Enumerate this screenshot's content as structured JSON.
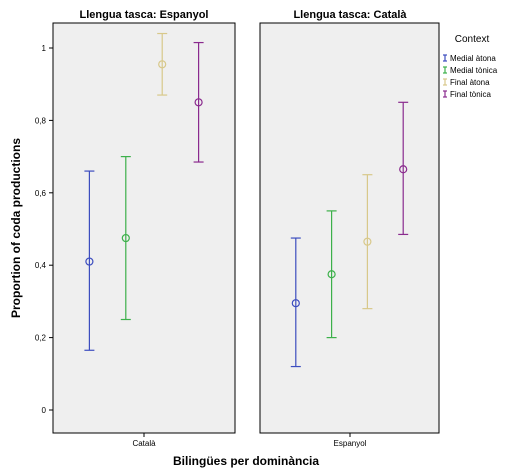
{
  "chart_data": {
    "type": "errorbar",
    "xlabel": "Bilingües per dominància",
    "ylabel": "Proportion of coda productions",
    "ylim": [
      0,
      1.05
    ],
    "y_ticks": [
      0,
      0.2,
      0.4,
      0.6,
      0.8,
      1
    ],
    "y_tick_labels": [
      "0",
      "0,2",
      "0,4",
      "0,6",
      "0,8",
      "1"
    ],
    "grid": false,
    "legend": {
      "title": "Context",
      "placement": "right",
      "entries": [
        {
          "name": "Medial àtona",
          "color": "#3c4dbf"
        },
        {
          "name": "Medial tònica",
          "color": "#3cb04a"
        },
        {
          "name": "Final àtona",
          "color": "#d8c88a"
        },
        {
          "name": "Final tònica",
          "color": "#8a2a8e"
        }
      ]
    },
    "panels": [
      {
        "title": "Llengua tasca: Espanyol",
        "category": "Català",
        "series": [
          {
            "name": "Medial àtona",
            "mean": 0.41,
            "low": 0.165,
            "high": 0.66
          },
          {
            "name": "Medial tònica",
            "mean": 0.475,
            "low": 0.25,
            "high": 0.7
          },
          {
            "name": "Final àtona",
            "mean": 0.955,
            "low": 0.87,
            "high": 1.04
          },
          {
            "name": "Final tònica",
            "mean": 0.85,
            "low": 0.685,
            "high": 1.015
          }
        ]
      },
      {
        "title": "Llengua tasca: Català",
        "category": "Espanyol",
        "series": [
          {
            "name": "Medial àtona",
            "mean": 0.295,
            "low": 0.12,
            "high": 0.475
          },
          {
            "name": "Medial tònica",
            "mean": 0.375,
            "low": 0.2,
            "high": 0.55
          },
          {
            "name": "Final àtona",
            "mean": 0.465,
            "low": 0.28,
            "high": 0.65
          },
          {
            "name": "Final tònica",
            "mean": 0.665,
            "low": 0.485,
            "high": 0.85
          }
        ]
      }
    ]
  }
}
